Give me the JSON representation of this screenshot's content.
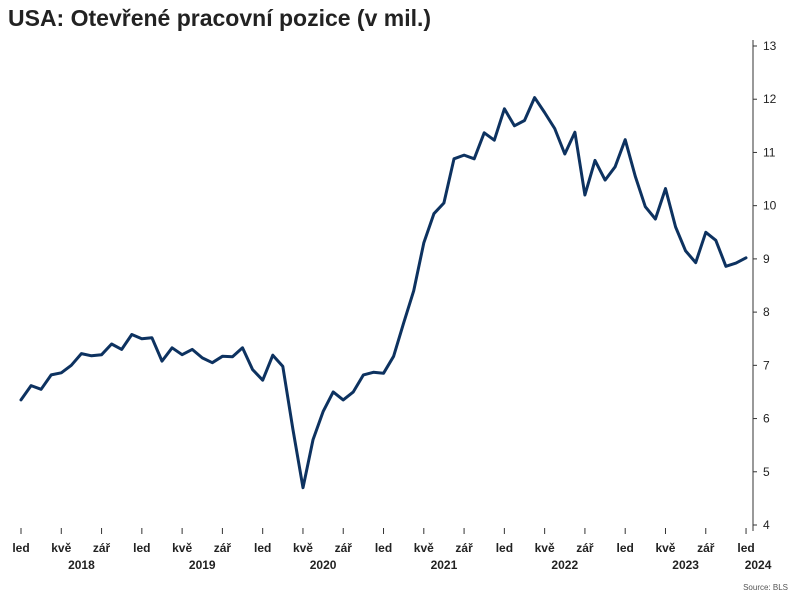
{
  "title": "USA: Otevřené pracovní pozice (v mil.)",
  "source": "Source: BLS",
  "colors": {
    "line": "#0d3260",
    "axis": "#333333",
    "text": "#222222"
  },
  "chart_data": {
    "type": "line",
    "title": "USA: Otevřené pracovní pozice (v mil.)",
    "ylim": [
      4,
      13
    ],
    "y_ticks": [
      4,
      5,
      6,
      7,
      8,
      9,
      10,
      11,
      12,
      13
    ],
    "y_axis_side": "right",
    "grid": false,
    "x_start": "2018-01",
    "x_month_ticks": [
      {
        "label": "led",
        "index": 0
      },
      {
        "label": "kvě",
        "index": 4
      },
      {
        "label": "zář",
        "index": 8
      },
      {
        "label": "led",
        "index": 12
      },
      {
        "label": "kvě",
        "index": 16
      },
      {
        "label": "zář",
        "index": 20
      },
      {
        "label": "led",
        "index": 24
      },
      {
        "label": "kvě",
        "index": 28
      },
      {
        "label": "zář",
        "index": 32
      },
      {
        "label": "led",
        "index": 36
      },
      {
        "label": "kvě",
        "index": 40
      },
      {
        "label": "zář",
        "index": 44
      },
      {
        "label": "led",
        "index": 48
      },
      {
        "label": "kvě",
        "index": 52
      },
      {
        "label": "zář",
        "index": 56
      },
      {
        "label": "led",
        "index": 60
      },
      {
        "label": "kvě",
        "index": 64
      },
      {
        "label": "zář",
        "index": 68
      },
      {
        "label": "led",
        "index": 72
      }
    ],
    "x_year_labels": [
      {
        "label": "2018",
        "index": 6
      },
      {
        "label": "2019",
        "index": 18
      },
      {
        "label": "2020",
        "index": 30
      },
      {
        "label": "2021",
        "index": 42
      },
      {
        "label": "2022",
        "index": 54
      },
      {
        "label": "2023",
        "index": 66
      },
      {
        "label": "2024",
        "index": 72
      }
    ],
    "series": [
      {
        "values": [
          6.35,
          6.62,
          6.55,
          6.82,
          6.86,
          7.0,
          7.22,
          7.18,
          7.2,
          7.4,
          7.3,
          7.58,
          7.5,
          7.52,
          7.08,
          7.33,
          7.2,
          7.3,
          7.14,
          7.05,
          7.17,
          7.16,
          7.33,
          6.92,
          6.72,
          7.19,
          6.98,
          5.8,
          4.7,
          5.6,
          6.13,
          6.5,
          6.35,
          6.5,
          6.82,
          6.87,
          6.85,
          7.17,
          7.8,
          8.4,
          9.3,
          9.85,
          10.05,
          10.88,
          10.95,
          10.88,
          11.37,
          11.23,
          11.82,
          11.5,
          11.6,
          12.03,
          11.75,
          11.45,
          10.97,
          11.38,
          10.2,
          10.85,
          10.48,
          10.73,
          11.24,
          10.55,
          9.98,
          9.75,
          10.32,
          9.6,
          9.15,
          8.93,
          9.5,
          9.35,
          8.86,
          8.92,
          9.02
        ]
      }
    ]
  }
}
